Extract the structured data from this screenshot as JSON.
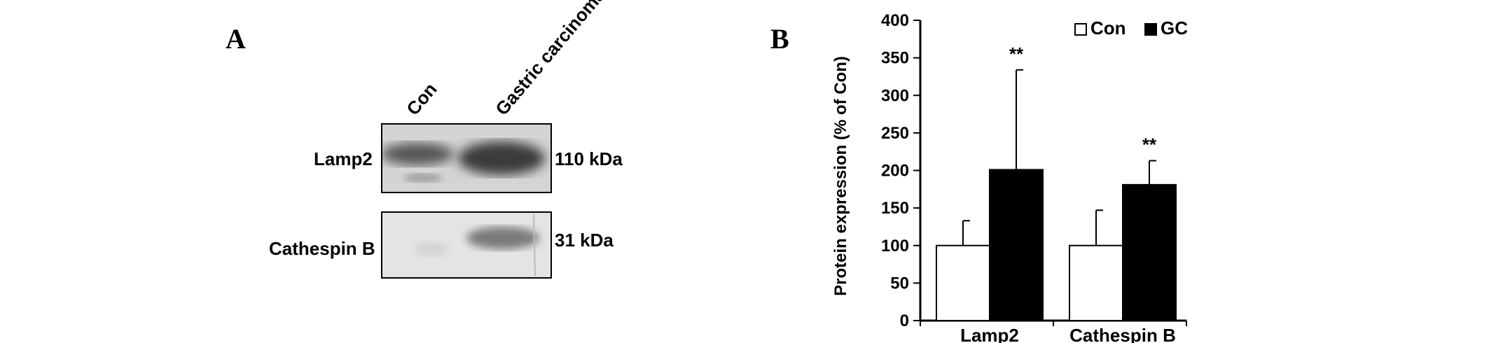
{
  "panel_a": {
    "letter": "A",
    "lanes": [
      "Con",
      "Gastric carcinoma"
    ],
    "blots": [
      {
        "protein": "Lamp2",
        "size": "110 kDa"
      },
      {
        "protein": "Cathespin B",
        "size": "31 kDa"
      }
    ]
  },
  "panel_b": {
    "letter": "B"
  },
  "chart_data": {
    "type": "bar",
    "categories": [
      "Lamp2",
      "Cathespin B"
    ],
    "series": [
      {
        "name": "Con",
        "values": [
          100,
          100
        ],
        "errors": [
          33,
          47
        ],
        "color": "#ffffff"
      },
      {
        "name": "GC",
        "values": [
          201,
          181
        ],
        "errors": [
          133,
          32
        ],
        "color": "#000000"
      }
    ],
    "significance": [
      "**",
      "**"
    ],
    "ylabel": "Protein expression (% of Con)",
    "xlabel": "",
    "ylim": [
      0,
      400
    ],
    "yticks": [
      0,
      50,
      100,
      150,
      200,
      250,
      300,
      350,
      400
    ],
    "legend": "top-right",
    "grid": false
  }
}
